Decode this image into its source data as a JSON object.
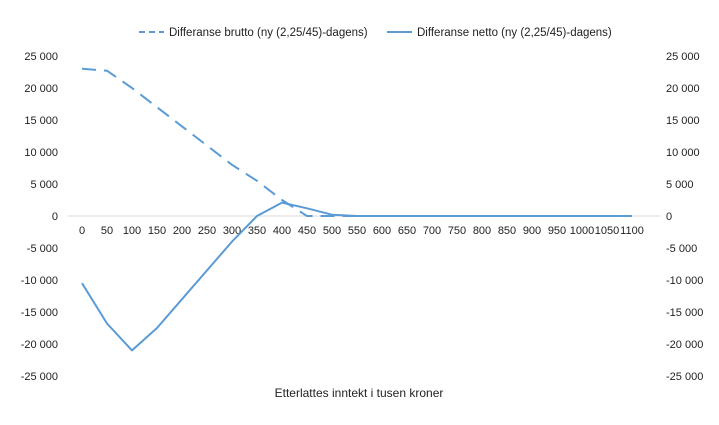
{
  "chart_data": {
    "type": "line",
    "title": "",
    "xlabel": "Etterlattes inntekt i tusen kroner",
    "ylabel": "",
    "categories": [
      "0",
      "50",
      "100",
      "150",
      "200",
      "250",
      "300",
      "350",
      "400",
      "450",
      "500",
      "550",
      "600",
      "650",
      "700",
      "750",
      "800",
      "850",
      "900",
      "950",
      "1000",
      "1050",
      "1100"
    ],
    "series": [
      {
        "name": "Differanse brutto (ny (2,25/45)-dagens)",
        "style": "dashed",
        "values": [
          23000,
          22700,
          20000,
          17000,
          14000,
          11000,
          8000,
          5500,
          2500,
          0,
          0,
          0,
          0,
          0,
          0,
          0,
          0,
          0,
          0,
          0,
          0,
          0,
          0
        ]
      },
      {
        "name": "Differanse netto (ny (2,25/45)-dagens)",
        "style": "solid",
        "values": [
          -10500,
          -16800,
          -21000,
          -17500,
          -13000,
          -8500,
          -4000,
          0,
          2100,
          1200,
          200,
          0,
          0,
          0,
          0,
          0,
          0,
          0,
          0,
          0,
          0,
          0,
          0
        ]
      }
    ],
    "yticks": [
      25000,
      20000,
      15000,
      10000,
      5000,
      0,
      -5000,
      -10000,
      -15000,
      -20000,
      -25000
    ],
    "ytick_labels": [
      "25 000",
      "20 000",
      "15 000",
      "10 000",
      "5 000",
      "0",
      "-5 000",
      "-10 000",
      "-15 000",
      "-20 000",
      "-25 000"
    ],
    "ylim": [
      -25000,
      25000
    ],
    "legend_position": "top",
    "grid": false,
    "secondary_y_axis": true,
    "colors": {
      "series": "#5b9bd5",
      "axis": "#d9d9d9",
      "text": "#222222"
    }
  }
}
